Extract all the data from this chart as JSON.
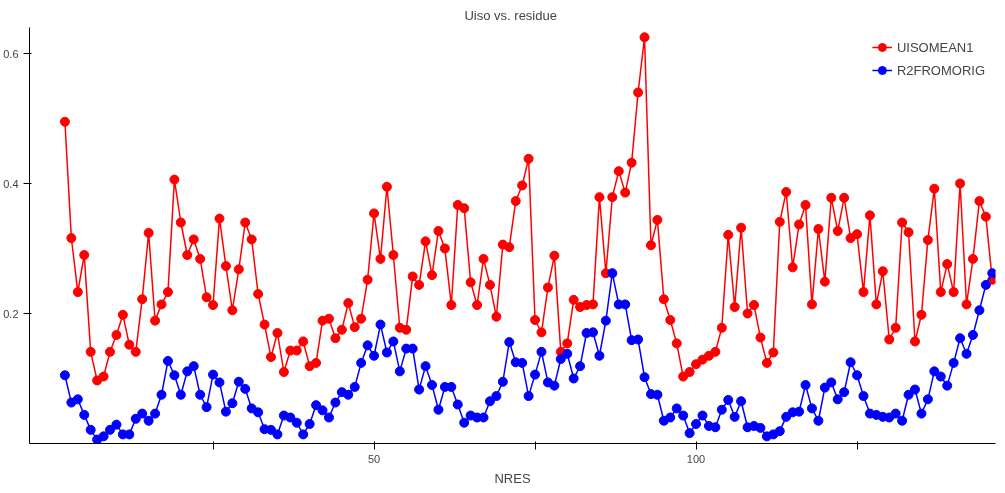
{
  "chart_data": {
    "type": "line",
    "title": "Uiso  vs. residue",
    "xlabel": "NRES",
    "marker": "circle",
    "line_style": "solid",
    "legend": "top right",
    "grid": false,
    "xlim": [
      -3.5,
      146.5
    ],
    "ylim": [
      0,
      0.64
    ],
    "xticks": [
      {
        "value": 25,
        "label": null
      },
      50,
      {
        "value": 75,
        "label": null
      },
      100,
      {
        "value": 125,
        "label": null
      }
    ],
    "yticks": [
      0.2,
      0.4,
      0.6
    ],
    "x": [
      2,
      3,
      4,
      5,
      6,
      7,
      8,
      9,
      10,
      11,
      12,
      13,
      14,
      15,
      16,
      17,
      18,
      19,
      20,
      21,
      22,
      23,
      24,
      25,
      26,
      27,
      28,
      29,
      30,
      31,
      32,
      33,
      34,
      35,
      36,
      37,
      38,
      39,
      40,
      41,
      42,
      43,
      44,
      45,
      46,
      47,
      48,
      49,
      50,
      51,
      52,
      53,
      54,
      55,
      56,
      57,
      58,
      59,
      60,
      61,
      62,
      63,
      64,
      65,
      66,
      67,
      68,
      69,
      70,
      71,
      72,
      73,
      74,
      75,
      76,
      77,
      78,
      79,
      80,
      81,
      82,
      83,
      84,
      85,
      86,
      87,
      88,
      89,
      90,
      91,
      92,
      93,
      94,
      95,
      96,
      97,
      98,
      99,
      100,
      101,
      102,
      103,
      104,
      105,
      106,
      107,
      108,
      109,
      110,
      111,
      112,
      113,
      114,
      115,
      116,
      117,
      118,
      119,
      120,
      121,
      122,
      123,
      124,
      125,
      126,
      127,
      128,
      129,
      130,
      131,
      132,
      133,
      134,
      135,
      136,
      137,
      138,
      139,
      140,
      141,
      142,
      143,
      144,
      145,
      146
    ],
    "series": [
      {
        "name": "UISOMEAN1",
        "color": "#ff0000",
        "values": [
          0.495,
          0.316,
          0.233,
          0.29,
          0.141,
          0.097,
          0.103,
          0.141,
          0.167,
          0.198,
          0.152,
          0.141,
          0.222,
          0.324,
          0.189,
          0.214,
          0.233,
          0.406,
          0.34,
          0.29,
          0.314,
          0.284,
          0.225,
          0.213,
          0.346,
          0.273,
          0.205,
          0.268,
          0.34,
          0.314,
          0.23,
          0.183,
          0.133,
          0.17,
          0.11,
          0.143,
          0.143,
          0.157,
          0.119,
          0.124,
          0.189,
          0.192,
          0.162,
          0.175,
          0.216,
          0.179,
          0.192,
          0.252,
          0.354,
          0.284,
          0.395,
          0.29,
          0.178,
          0.175,
          0.257,
          0.244,
          0.311,
          0.259,
          0.327,
          0.3,
          0.213,
          0.367,
          0.362,
          0.248,
          0.213,
          0.284,
          0.244,
          0.195,
          0.306,
          0.302,
          0.373,
          0.397,
          0.438,
          0.19,
          0.171,
          0.24,
          0.289,
          0.141,
          0.154,
          0.221,
          0.21,
          0.213,
          0.214,
          0.379,
          0.262,
          0.379,
          0.419,
          0.386,
          0.432,
          0.54,
          0.625,
          0.305,
          0.344,
          0.222,
          0.19,
          0.154,
          0.103,
          0.11,
          0.122,
          0.129,
          0.135,
          0.141,
          0.178,
          0.321,
          0.21,
          0.332,
          0.2,
          0.213,
          0.163,
          0.124,
          0.14,
          0.341,
          0.387,
          0.271,
          0.337,
          0.367,
          0.214,
          0.33,
          0.249,
          0.378,
          0.327,
          0.378,
          0.316,
          0.322,
          0.233,
          0.351,
          0.214,
          0.265,
          0.16,
          0.178,
          0.34,
          0.325,
          0.157,
          0.198,
          0.313,
          0.392,
          0.233,
          0.276,
          0.233,
          0.4,
          0.214,
          0.284,
          0.373,
          0.349,
          0.252
        ]
      },
      {
        "name": "R2FROMORIG",
        "color": "#0000ff",
        "values": [
          0.105,
          0.063,
          0.068,
          0.044,
          0.021,
          0.006,
          0.011,
          0.021,
          0.029,
          0.014,
          0.014,
          0.038,
          0.046,
          0.035,
          0.046,
          0.075,
          0.127,
          0.105,
          0.075,
          0.111,
          0.119,
          0.075,
          0.056,
          0.106,
          0.094,
          0.049,
          0.062,
          0.095,
          0.084,
          0.054,
          0.048,
          0.022,
          0.021,
          0.014,
          0.043,
          0.04,
          0.032,
          0.014,
          0.03,
          0.059,
          0.051,
          0.04,
          0.063,
          0.079,
          0.075,
          0.087,
          0.124,
          0.151,
          0.135,
          0.183,
          0.14,
          0.157,
          0.111,
          0.146,
          0.146,
          0.083,
          0.119,
          0.09,
          0.052,
          0.087,
          0.087,
          0.06,
          0.032,
          0.043,
          0.04,
          0.04,
          0.065,
          0.073,
          0.095,
          0.156,
          0.125,
          0.124,
          0.073,
          0.106,
          0.141,
          0.094,
          0.089,
          0.13,
          0.138,
          0.1,
          0.119,
          0.17,
          0.171,
          0.135,
          0.189,
          0.262,
          0.214,
          0.214,
          0.159,
          0.16,
          0.102,
          0.076,
          0.075,
          0.035,
          0.04,
          0.054,
          0.043,
          0.016,
          0.03,
          0.043,
          0.027,
          0.025,
          0.052,
          0.067,
          0.041,
          0.065,
          0.025,
          0.027,
          0.024,
          0.011,
          0.014,
          0.019,
          0.041,
          0.048,
          0.049,
          0.09,
          0.054,
          0.035,
          0.086,
          0.094,
          0.068,
          0.079,
          0.125,
          0.105,
          0.073,
          0.046,
          0.044,
          0.041,
          0.04,
          0.046,
          0.035,
          0.075,
          0.083,
          0.046,
          0.068,
          0.111,
          0.103,
          0.089,
          0.124,
          0.162,
          0.138,
          0.167,
          0.205,
          0.244,
          0.262
        ]
      }
    ]
  }
}
